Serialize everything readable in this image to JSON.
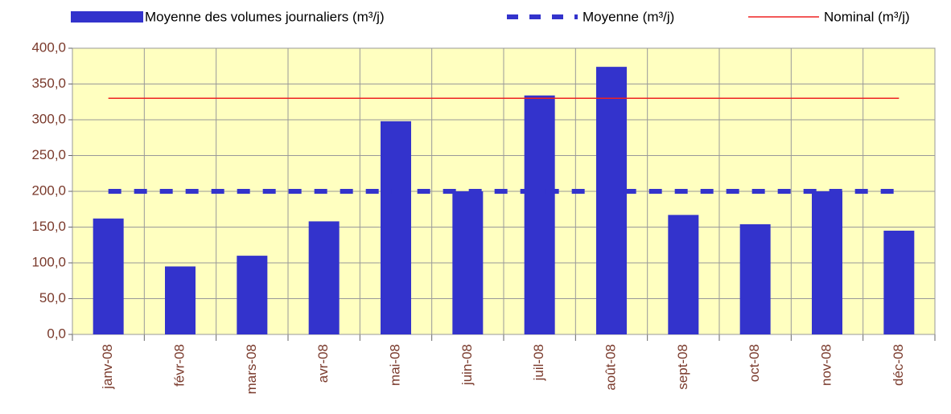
{
  "chart_data": {
    "type": "bar",
    "categories": [
      "janv-08",
      "févr-08",
      "mars-08",
      "avr-08",
      "mai-08",
      "juin-08",
      "juil-08",
      "août-08",
      "sept-08",
      "oct-08",
      "nov-08",
      "déc-08"
    ],
    "series": [
      {
        "name": "Moyenne des volumes journaliers (m³/j)",
        "type": "bar",
        "color": "#3333cc",
        "values": [
          162,
          95,
          110,
          158,
          298,
          200,
          334,
          374,
          167,
          154,
          200,
          145
        ]
      },
      {
        "name": "Moyenne (m³/j)",
        "type": "line",
        "dash": true,
        "color": "#3333cc",
        "values": [
          200,
          200,
          200,
          200,
          200,
          200,
          200,
          200,
          200,
          200,
          200,
          200
        ]
      },
      {
        "name": "Nominal (m³/j)",
        "type": "line",
        "dash": false,
        "color": "#ee2222",
        "values": [
          330,
          330,
          330,
          330,
          330,
          330,
          330,
          330,
          330,
          330,
          330,
          330
        ]
      }
    ],
    "ylim": [
      0,
      400
    ],
    "yticks": [
      {
        "value": 0,
        "label": "0,0"
      },
      {
        "value": 50,
        "label": "50,0"
      },
      {
        "value": 100,
        "label": "100,0"
      },
      {
        "value": 150,
        "label": "150,0"
      },
      {
        "value": 200,
        "label": "200,0"
      },
      {
        "value": 250,
        "label": "250,0"
      },
      {
        "value": 300,
        "label": "300,0"
      },
      {
        "value": 350,
        "label": "350,0"
      },
      {
        "value": 400,
        "label": "400,0"
      }
    ],
    "grid": true,
    "legend": "top"
  }
}
